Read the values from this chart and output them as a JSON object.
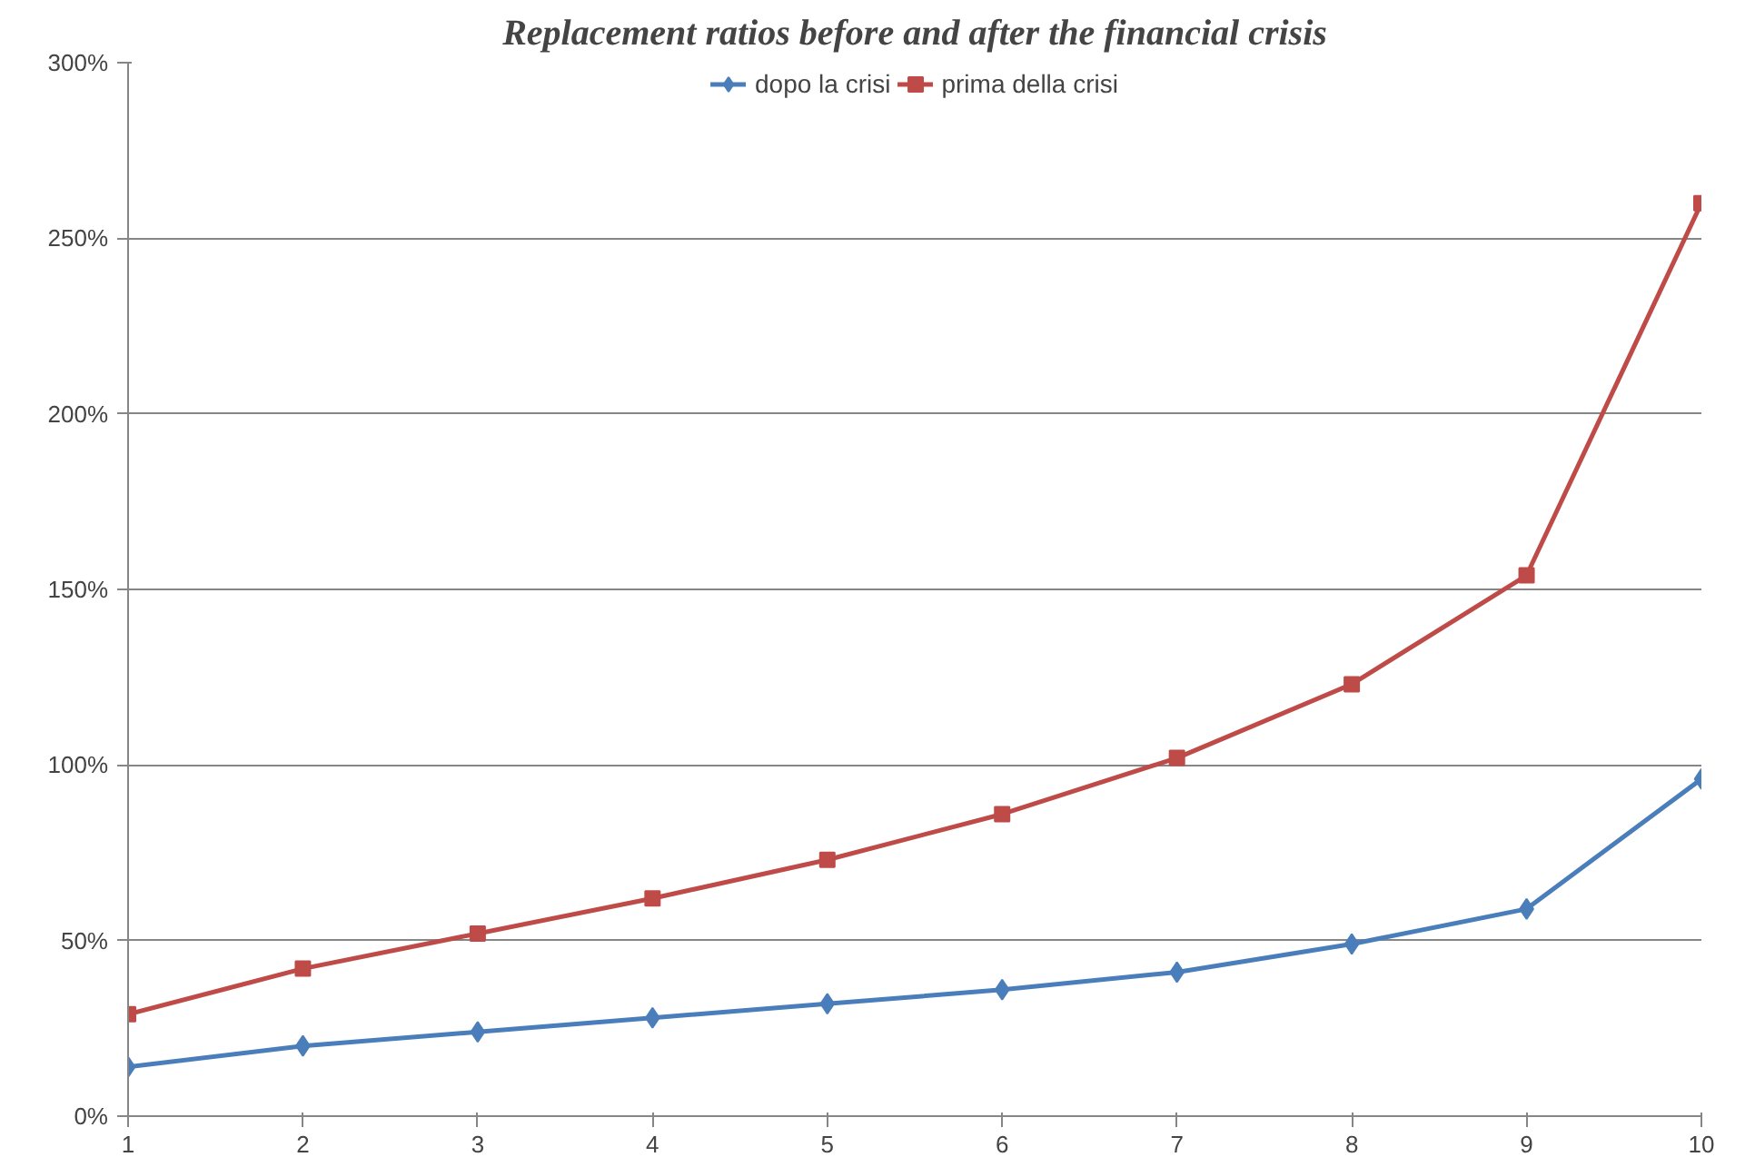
{
  "chart_data": {
    "type": "line",
    "title": "Replacement ratios before and after the financial crisis",
    "x": [
      1,
      2,
      3,
      4,
      5,
      6,
      7,
      8,
      9,
      10
    ],
    "series": [
      {
        "name": "dopo la crisi",
        "color": "#4a7ebb",
        "marker": "diamond",
        "values": [
          14,
          20,
          24,
          28,
          32,
          36,
          41,
          49,
          59,
          96
        ]
      },
      {
        "name": "prima della crisi",
        "color": "#be4b48",
        "marker": "square",
        "values": [
          29,
          42,
          52,
          62,
          73,
          86,
          102,
          123,
          154,
          260
        ]
      }
    ],
    "xlim": [
      1,
      10
    ],
    "xticks": [
      1,
      2,
      3,
      4,
      5,
      6,
      7,
      8,
      9,
      10
    ],
    "ylim": [
      0,
      300
    ],
    "yticks": [
      {
        "value": 0,
        "label": "0%"
      },
      {
        "value": 50,
        "label": "50%"
      },
      {
        "value": 100,
        "label": "100%"
      },
      {
        "value": 150,
        "label": "150%"
      },
      {
        "value": 200,
        "label": "200%"
      },
      {
        "value": 250,
        "label": "250%"
      },
      {
        "value": 300,
        "label": "300%"
      }
    ],
    "grid": "y",
    "legend": "top",
    "line_style": "solid"
  }
}
